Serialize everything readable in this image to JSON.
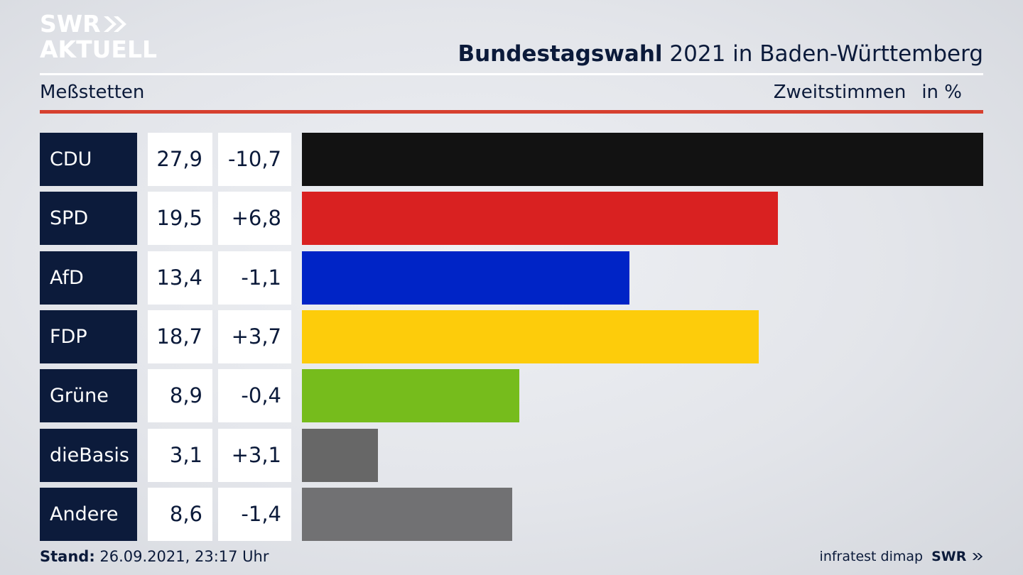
{
  "logo": {
    "line1": "SWR",
    "line2": "AKTUELL"
  },
  "header": {
    "title_bold": "Bundestagswahl",
    "title_rest": " 2021 in Baden-Württemberg",
    "place": "Meßstetten",
    "metric": "Zweitstimmen",
    "unit": "in %"
  },
  "chart_data": {
    "type": "bar",
    "orientation": "horizontal",
    "categories": [
      "CDU",
      "SPD",
      "AfD",
      "FDP",
      "Grüne",
      "dieBasis",
      "Andere"
    ],
    "series": [
      {
        "values": [
          27.9,
          19.5,
          13.4,
          18.7,
          8.9,
          3.1,
          8.6
        ]
      }
    ],
    "value_labels": [
      "27,9",
      "19,5",
      "13,4",
      "18,7",
      "8,9",
      "3,1",
      "8,6"
    ],
    "change_labels": [
      "-10,7",
      "+6,8",
      "-1,1",
      "+3,7",
      "-0,4",
      "+3,1",
      "-1,4"
    ],
    "changes": [
      -10.7,
      6.8,
      -1.1,
      3.7,
      -0.4,
      3.1,
      -1.4
    ],
    "colors": [
      "#121212",
      "#d92121",
      "#0024c6",
      "#fdcc0b",
      "#76bc1c",
      "#676767",
      "#717173"
    ],
    "xlim": [
      0,
      27.9
    ],
    "grid": false,
    "legend": "none"
  },
  "footer": {
    "stand_label": "Stand:",
    "stand_value": " 26.09.2021, 23:17 Uhr",
    "source": "infratest dimap",
    "brand": "SWR"
  }
}
